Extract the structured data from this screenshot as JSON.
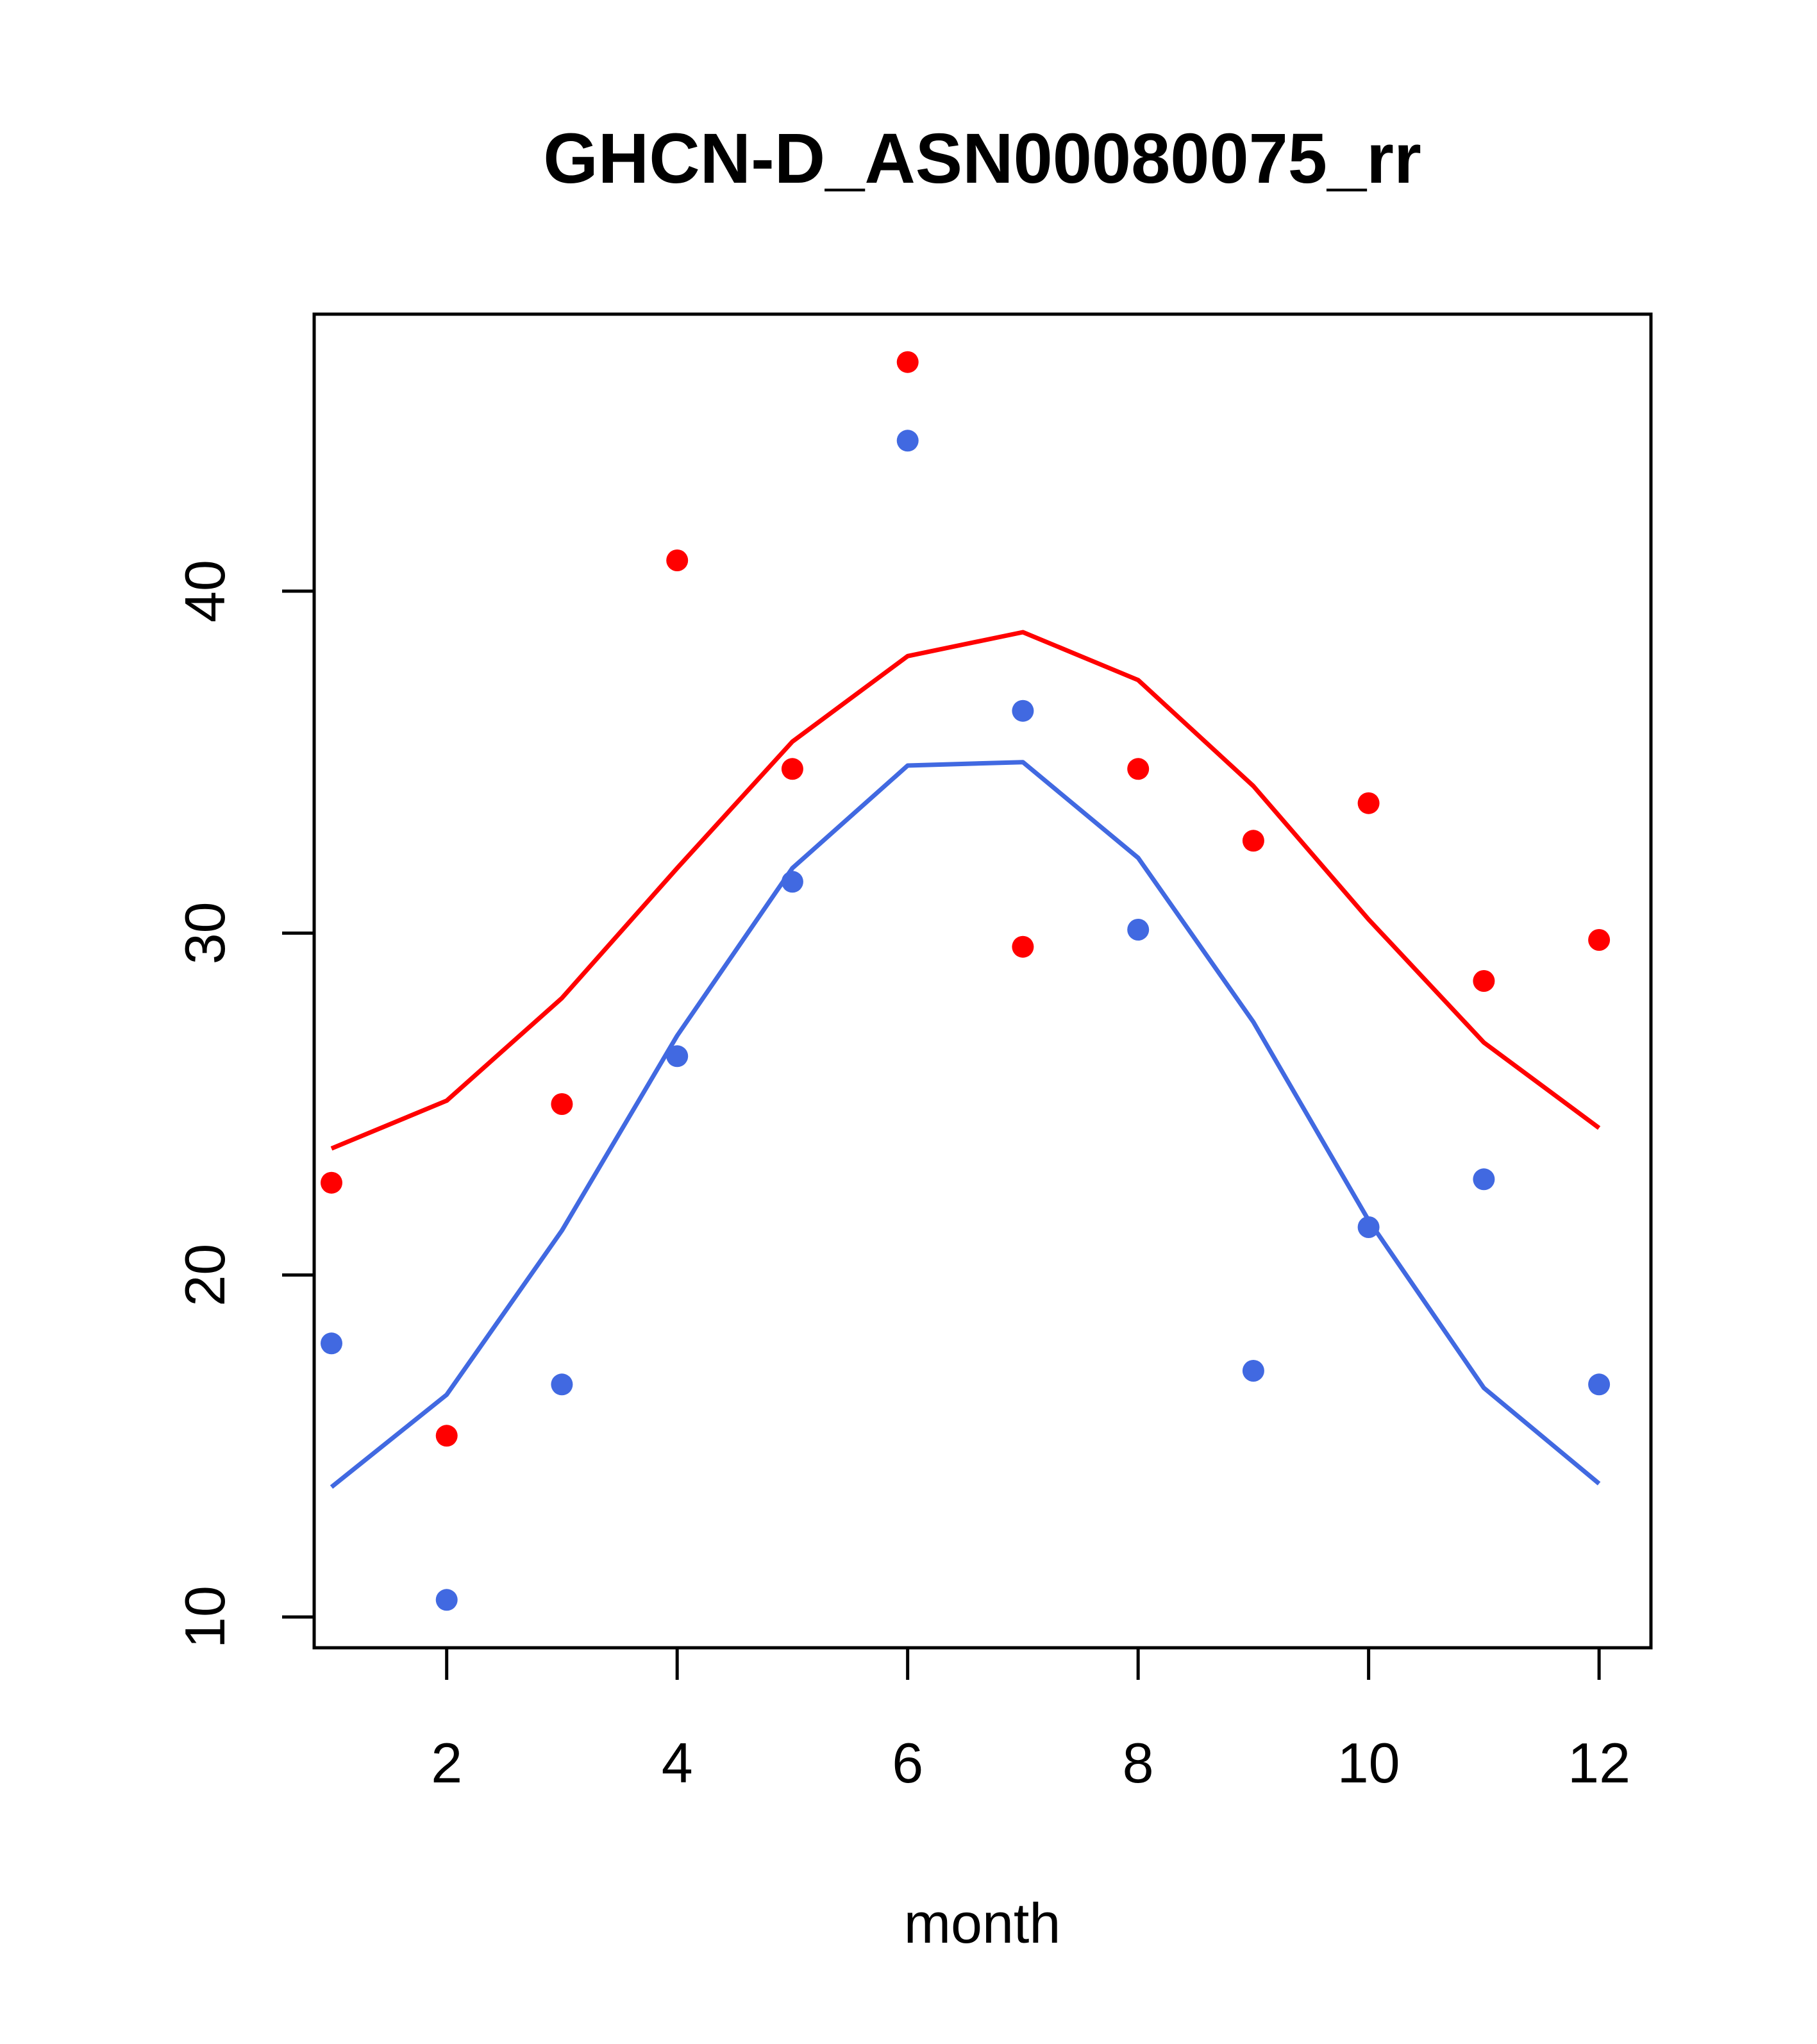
{
  "chart_data": {
    "type": "scatter",
    "title": "GHCN-D_ASN00080075_rr",
    "xlabel": "month",
    "ylabel": "",
    "xlim": [
      0.85,
      12.45
    ],
    "ylim": [
      9.1,
      48.1
    ],
    "x_ticks": [
      2,
      4,
      6,
      8,
      10,
      12
    ],
    "y_ticks": [
      10,
      20,
      30,
      40
    ],
    "grid": false,
    "legend": "none",
    "x": [
      1,
      2,
      3,
      4,
      5,
      6,
      7,
      8,
      9,
      10,
      11,
      12
    ],
    "series": [
      {
        "kind": "points",
        "color": "#ff0000",
        "values": [
          22.7,
          15.3,
          25.0,
          40.9,
          34.8,
          46.7,
          29.6,
          34.8,
          32.7,
          33.8,
          28.6,
          29.8
        ]
      },
      {
        "kind": "points",
        "color": "#4169e1",
        "values": [
          18.0,
          10.5,
          16.8,
          26.4,
          31.5,
          44.4,
          36.5,
          30.1,
          17.2,
          21.4,
          22.8,
          16.8
        ]
      },
      {
        "kind": "line",
        "color": "#ff0000",
        "values": [
          23.7,
          25.1,
          28.1,
          31.9,
          35.6,
          38.1,
          38.8,
          37.4,
          34.3,
          30.4,
          26.8,
          24.3
        ]
      },
      {
        "kind": "line",
        "color": "#4169e1",
        "values": [
          13.8,
          16.5,
          21.3,
          27.0,
          31.9,
          34.9,
          35.0,
          32.2,
          27.4,
          21.6,
          16.7,
          13.9
        ]
      }
    ]
  }
}
